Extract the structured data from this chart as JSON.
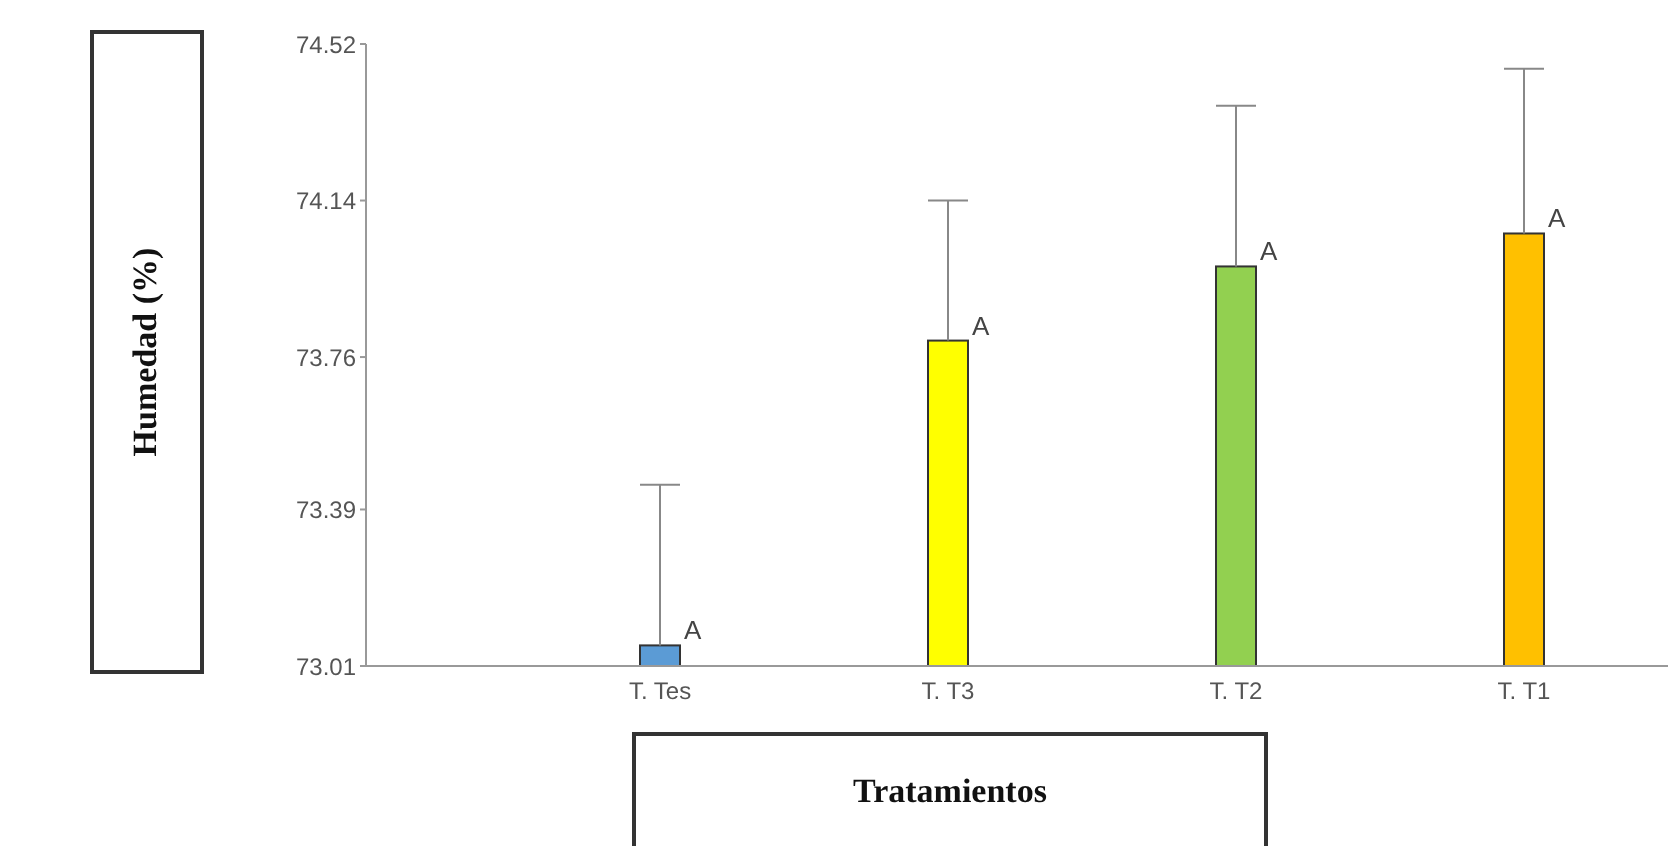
{
  "chart_data": {
    "type": "bar",
    "xlabel": "Tratamientos",
    "ylabel": "Humedad (%)",
    "categories": [
      "T. Tes",
      "T. T3",
      "T. T2",
      "T. T1"
    ],
    "values": [
      73.06,
      73.8,
      73.98,
      74.06
    ],
    "colors": [
      "#5b9bd5",
      "#ffff00",
      "#92d050",
      "#ffc000"
    ],
    "errors": [
      [
        73.06,
        73.45
      ],
      [
        73.8,
        74.14
      ],
      [
        73.98,
        74.37
      ],
      [
        74.06,
        74.46
      ]
    ],
    "ylim": [
      73.01,
      74.52
    ],
    "yticks": [
      73.01,
      73.39,
      73.76,
      74.14,
      74.52
    ],
    "grid": false,
    "annotations": [
      {
        "text": "A",
        "x": "T. Tes",
        "y": 73.06
      },
      {
        "text": "A",
        "x": "T. T3",
        "y": 73.8
      },
      {
        "text": "A",
        "x": "T. T2",
        "y": 73.98
      },
      {
        "text": "A",
        "x": "T. T1",
        "y": 74.06
      }
    ]
  }
}
